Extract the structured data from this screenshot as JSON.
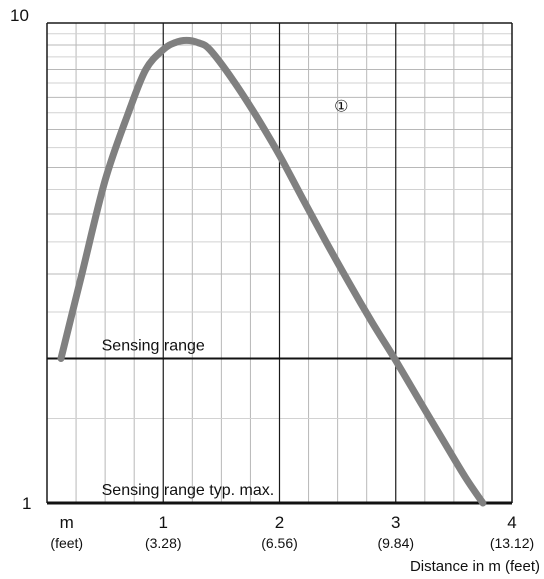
{
  "chart_data": {
    "type": "line",
    "title": "",
    "xlabel": "Distance in m (feet)",
    "ylabel": "",
    "x_unit_label": {
      "main": "m",
      "sub": "(feet)"
    },
    "xlim": [
      0,
      4
    ],
    "ylim": [
      1,
      10
    ],
    "yscale": "log",
    "grid": true,
    "x_ticks": [
      {
        "value": 1,
        "main": "1",
        "sub": "(3.28)"
      },
      {
        "value": 2,
        "main": "2",
        "sub": "(6.56)"
      },
      {
        "value": 3,
        "main": "3",
        "sub": "(9.84)"
      },
      {
        "value": 4,
        "main": "4",
        "sub": "(13.12)"
      }
    ],
    "y_ticks": [
      {
        "value": 1,
        "label": "1"
      },
      {
        "value": 10,
        "label": "10"
      }
    ],
    "series": [
      {
        "name": "①",
        "color": "#808080",
        "x": [
          0.12,
          0.3,
          0.5,
          0.7,
          0.85,
          1.0,
          1.1,
          1.2,
          1.3,
          1.4,
          1.6,
          1.8,
          2.0,
          2.2,
          2.4,
          2.6,
          2.8,
          3.0,
          3.2,
          3.4,
          3.6,
          3.75
        ],
        "y": [
          2.0,
          3.0,
          4.7,
          6.5,
          8.0,
          8.8,
          9.1,
          9.2,
          9.1,
          8.8,
          7.6,
          6.4,
          5.3,
          4.3,
          3.5,
          2.87,
          2.37,
          1.98,
          1.64,
          1.36,
          1.13,
          1.0
        ]
      }
    ],
    "reference_lines": [
      {
        "value": 2,
        "label": "Sensing range"
      },
      {
        "value": 1,
        "label": "Sensing range typ. max."
      }
    ],
    "series_label": {
      "text": "①",
      "x": 2.47,
      "y": 6.8
    }
  }
}
